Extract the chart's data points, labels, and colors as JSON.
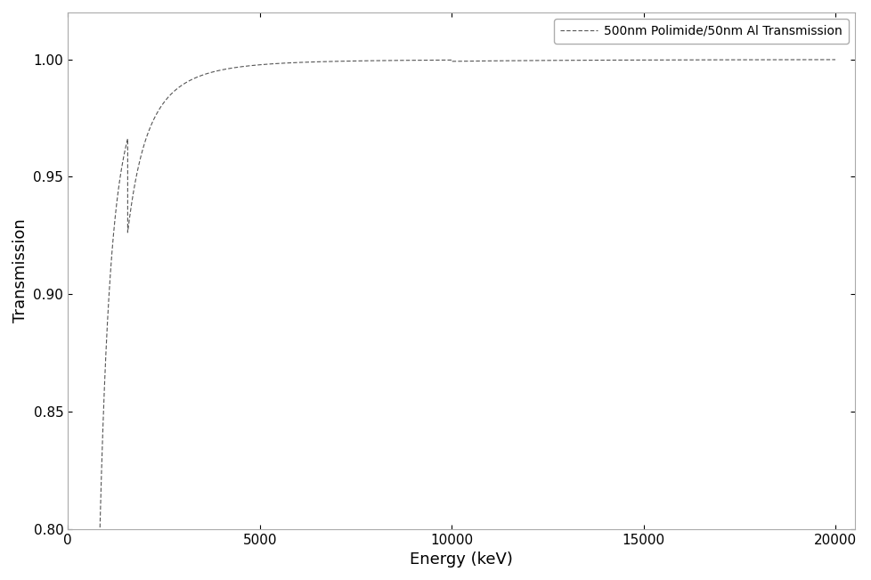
{
  "xlabel": "Energy (keV)",
  "ylabel": "Transmission",
  "legend_label": "500nm Polimide/50nm Al Transmission",
  "xlim": [
    0,
    20500
  ],
  "ylim": [
    0.8,
    1.02
  ],
  "xticks": [
    0,
    5000,
    10000,
    15000,
    20000
  ],
  "yticks": [
    0.8,
    0.85,
    0.9,
    0.95,
    1.0
  ],
  "line_color": "#555555",
  "line_style": "--",
  "line_width": 0.8,
  "bg_color": "#ffffff",
  "legend_box_color": "#ffffff",
  "xlabel_fontsize": 13,
  "ylabel_fontsize": 13,
  "tick_fontsize": 11,
  "legend_fontsize": 10,
  "figsize": [
    9.79,
    6.51
  ],
  "dpi": 100,
  "curve_start_x": 700,
  "al_kedge_eV": 1560,
  "step_magnitude": 0.008
}
